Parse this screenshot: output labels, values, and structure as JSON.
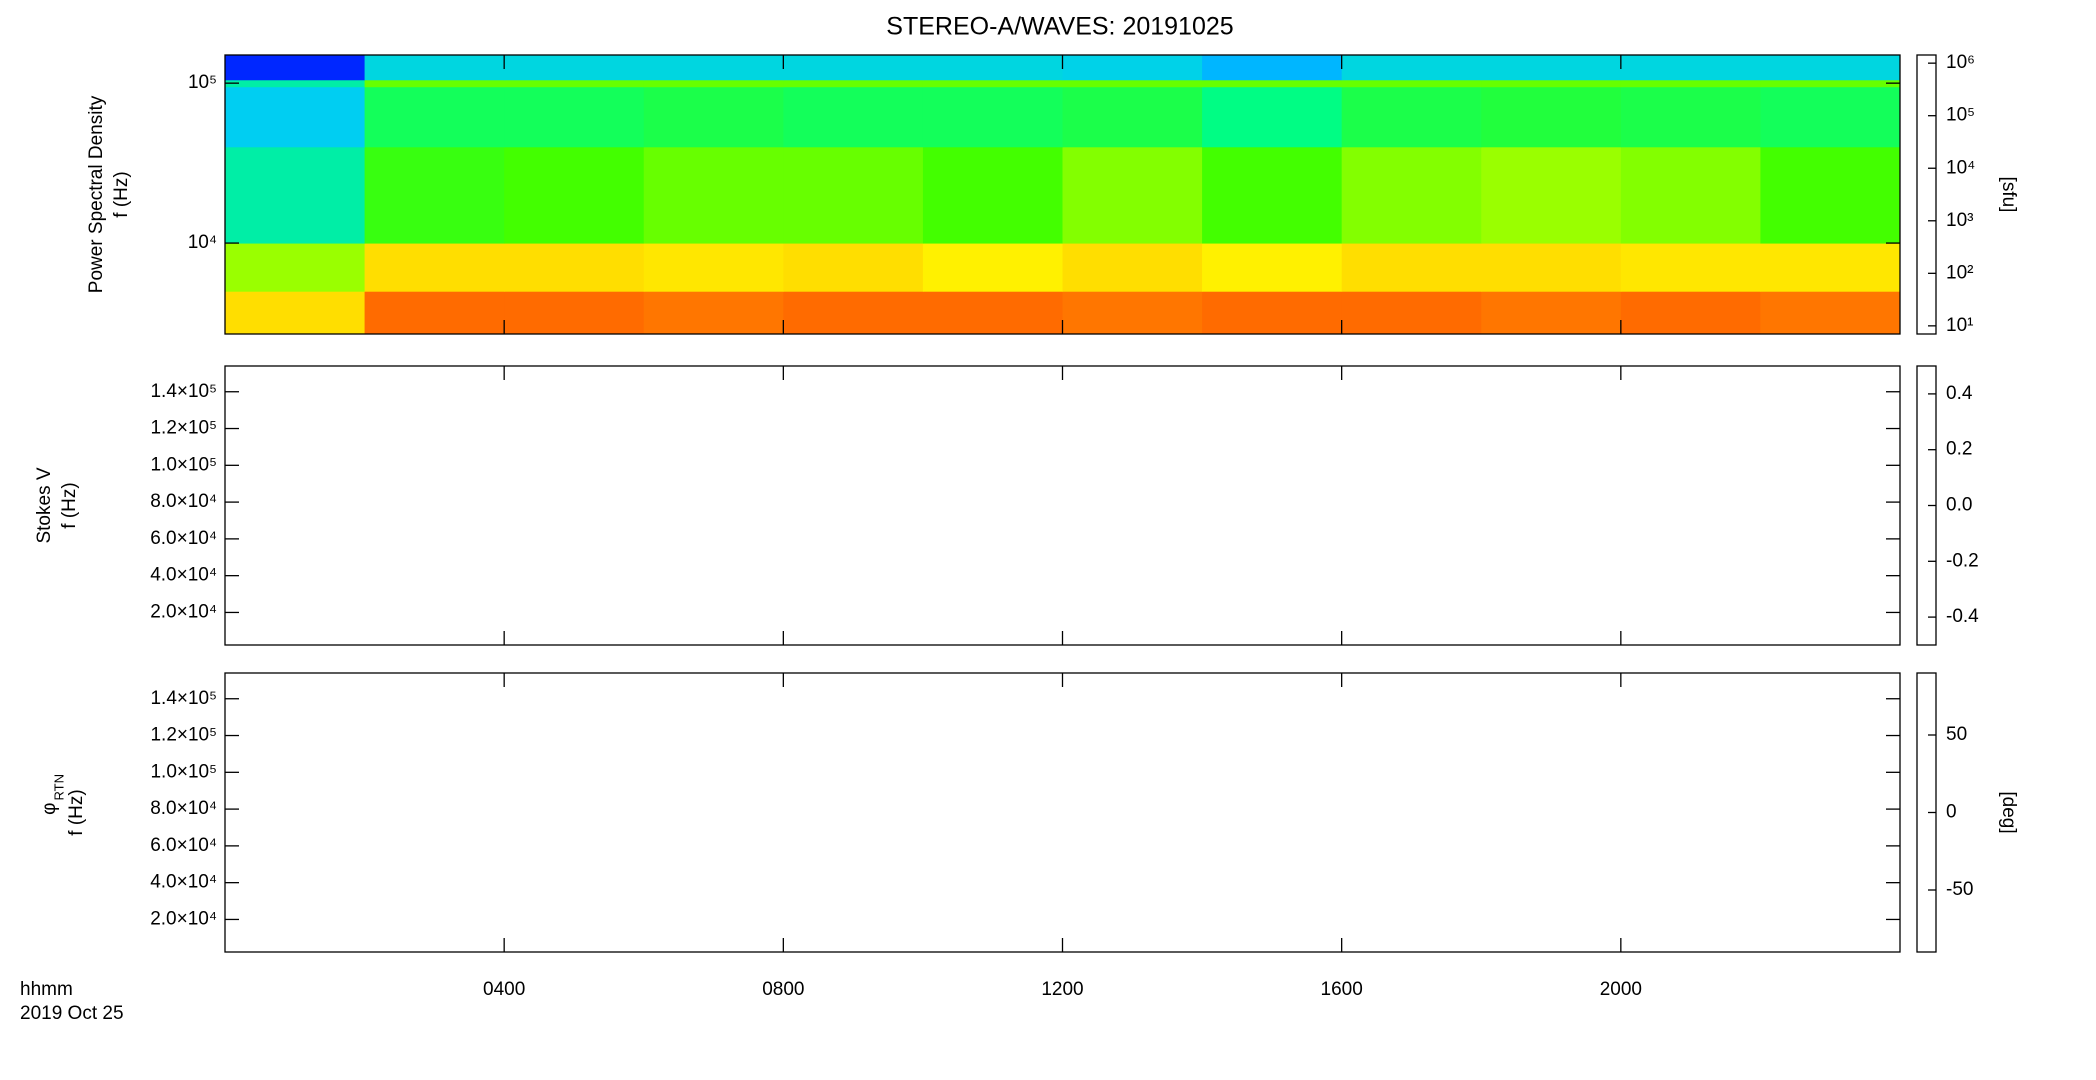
{
  "chart_data": [
    {
      "type": "heatmap",
      "title": "STEREO-A/WAVES: 20191025",
      "ylabel": [
        "Power Spectral Density",
        "f (Hz)"
      ],
      "xlim": [
        0,
        24
      ],
      "yscale": "log",
      "ylim": [
        2700,
        150000
      ],
      "yticks": [
        {
          "value": 10000,
          "label": "10⁴"
        },
        {
          "value": 100000,
          "label": "10⁵"
        }
      ],
      "x": [
        0,
        2,
        4,
        6,
        8,
        10,
        12,
        14,
        16,
        18,
        20,
        22,
        24
      ],
      "y": [
        2700,
        5000,
        10000,
        40000,
        95000,
        105000,
        150000
      ],
      "z": [
        [
          100000,
          400000,
          400000,
          350000,
          400000,
          400000,
          350000,
          400000,
          400000,
          350000,
          400000,
          350000
        ],
        [
          30000,
          100000,
          100000,
          90000,
          100000,
          80000,
          100000,
          80000,
          100000,
          100000,
          90000,
          90000
        ],
        [
          2000,
          12000,
          15000,
          20000,
          20000,
          15000,
          25000,
          15000,
          25000,
          30000,
          25000,
          15000
        ],
        [
          800,
          5000,
          5000,
          6000,
          5000,
          5000,
          6000,
          3000,
          6000,
          7000,
          6000,
          5000
        ],
        [
          2000,
          20000,
          20000,
          20000,
          20000,
          20000,
          20000,
          20000,
          20000,
          20000,
          20000,
          20000
        ],
        [
          200,
          1000,
          1000,
          1000,
          1000,
          1000,
          900,
          600,
          1000,
          1000,
          1000,
          1000
        ]
      ],
      "zscale": "log",
      "zlim": [
        7,
        1430000
      ],
      "zlabel": "[sfu]",
      "zticks": [
        {
          "value": 10,
          "label": "10¹"
        },
        {
          "value": 100,
          "label": "10²"
        },
        {
          "value": 1000,
          "label": "10³"
        },
        {
          "value": 10000,
          "label": "10⁴"
        },
        {
          "value": 100000,
          "label": "10⁵"
        },
        {
          "value": 1000000,
          "label": "10⁶"
        }
      ],
      "colormap": [
        "#000000",
        "#5a00a0",
        "#0000ff",
        "#00c8ff",
        "#00ff80",
        "#40ff00",
        "#ffff00",
        "#ff8000",
        "#ff0000"
      ]
    },
    {
      "type": "heatmap",
      "ylabel": [
        "Stokes V",
        "f (Hz)"
      ],
      "xlim": [
        0,
        24
      ],
      "ylim": [
        2300,
        154000
      ],
      "yticks": [
        {
          "value": 20000,
          "label": "2.0×10⁴"
        },
        {
          "value": 40000,
          "label": "4.0×10⁴"
        },
        {
          "value": 60000,
          "label": "6.0×10⁴"
        },
        {
          "value": 80000,
          "label": "8.0×10⁴"
        },
        {
          "value": 100000,
          "label": "1.0×10⁵"
        },
        {
          "value": 120000,
          "label": "1.2×10⁵"
        },
        {
          "value": 140000,
          "label": "1.4×10⁵"
        }
      ],
      "zlim": [
        -0.5,
        0.5
      ],
      "zticks": [
        -0.4,
        -0.2,
        {
          "value": 0,
          "label": "0.0"
        },
        0.2,
        0.4
      ],
      "colormap": [
        "#000000",
        "#5a00a0",
        "#0000ff",
        "#00c8ff",
        "#00ff80",
        "#40ff00",
        "#ffff00",
        "#ff8000",
        "#ff0000"
      ]
    },
    {
      "type": "heatmap",
      "ylabel": [
        "φ",
        "RTN",
        "f (Hz)"
      ],
      "xlim": [
        0,
        24
      ],
      "ylim": [
        2300,
        154000
      ],
      "yticks": [
        {
          "value": 20000,
          "label": "2.0×10⁴"
        },
        {
          "value": 40000,
          "label": "4.0×10⁴"
        },
        {
          "value": 60000,
          "label": "6.0×10⁴"
        },
        {
          "value": 80000,
          "label": "8.0×10⁴"
        },
        {
          "value": 100000,
          "label": "1.0×10⁵"
        },
        {
          "value": 120000,
          "label": "1.2×10⁵"
        },
        {
          "value": 140000,
          "label": "1.4×10⁵"
        }
      ],
      "zlim": [
        -90,
        90
      ],
      "zticks": [
        -50,
        0,
        50
      ],
      "zlabel": "[deg]",
      "xticks": [
        {
          "value": 4,
          "label": "0400"
        },
        {
          "value": 8,
          "label": "0800"
        },
        {
          "value": 12,
          "label": "1200"
        },
        {
          "value": 16,
          "label": "1600"
        },
        {
          "value": 20,
          "label": "2000"
        }
      ],
      "xlabel": "hhmm",
      "date": "2019 Oct 25",
      "colormap": [
        "#000000",
        "#5a00a0",
        "#0000ff",
        "#00c8ff",
        "#00ff80",
        "#40ff00",
        "#ffff00",
        "#ff8000",
        "#ff0000"
      ]
    }
  ]
}
